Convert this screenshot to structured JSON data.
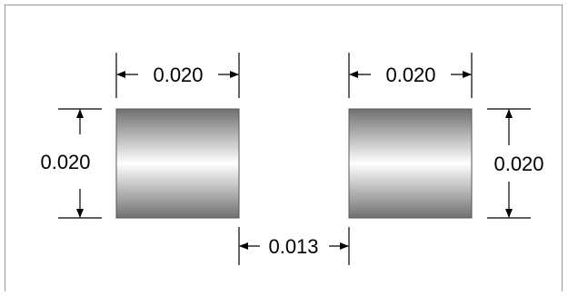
{
  "diagram": {
    "pad_left": {
      "width_label": "0.020",
      "height_label": "0.020"
    },
    "pad_right": {
      "width_label": "0.020",
      "height_label": "0.020"
    },
    "gap_label": "0.013",
    "colors": {
      "pad_dark": "#6e6e6e",
      "pad_light": "#ffffff",
      "pad_edge": "#444444",
      "line": "#000000"
    }
  }
}
